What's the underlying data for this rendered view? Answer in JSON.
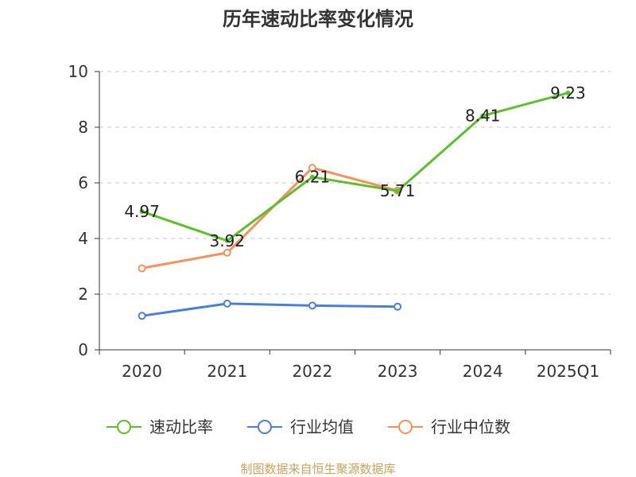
{
  "chart_data": {
    "type": "line",
    "title": "历年速动比率变化情况",
    "categories": [
      "2020",
      "2021",
      "2022",
      "2023",
      "2024",
      "2025Q1"
    ],
    "ylim": [
      0,
      10
    ],
    "yticks": [
      0,
      2,
      4,
      6,
      8,
      10
    ],
    "grid": "horizontal dashed",
    "legend_position": "bottom",
    "series": [
      {
        "name": "速动比率",
        "color": "#5cc02a",
        "values": [
          4.97,
          3.92,
          6.21,
          5.71,
          8.41,
          9.23
        ],
        "data_labels": [
          "4.97",
          "3.92",
          "6.21",
          "5.71",
          "8.41",
          "9.23"
        ]
      },
      {
        "name": "行业均值",
        "color": "#4a7fd9",
        "values": [
          1.22,
          1.66,
          1.59,
          1.55,
          null,
          null
        ]
      },
      {
        "name": "行业中位数",
        "color": "#f5915a",
        "values": [
          2.93,
          3.49,
          6.54,
          5.72,
          null,
          null
        ]
      }
    ],
    "source_note": "制图数据来自恒生聚源数据库"
  }
}
